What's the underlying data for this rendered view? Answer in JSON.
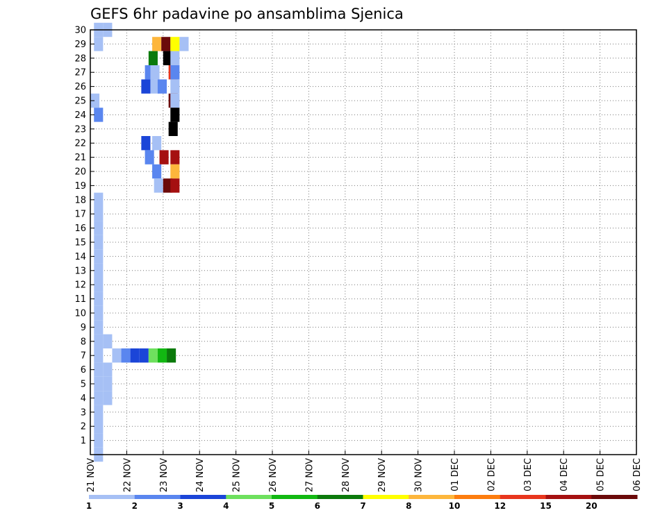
{
  "chart_data": {
    "type": "heatmap",
    "title": "GEFS 6hr padavine po ansamblima Sjenica",
    "xlabel": "",
    "ylabel": "",
    "x_tick_labels": [
      "21 NOV",
      "22 NOV",
      "23 NOV",
      "24 NOV",
      "25 NOV",
      "26 NOV",
      "27 NOV",
      "28 NOV",
      "29 NOV",
      "30 NOV",
      "01 DEC",
      "02 DEC",
      "03 DEC",
      "04 DEC",
      "05 DEC",
      "06 DEC"
    ],
    "x_range_days": [
      0,
      15
    ],
    "y_tick_labels": [
      "1",
      "2",
      "3",
      "4",
      "5",
      "6",
      "7",
      "8",
      "9",
      "10",
      "11",
      "12",
      "13",
      "14",
      "15",
      "16",
      "17",
      "18",
      "19",
      "20",
      "21",
      "22",
      "23",
      "24",
      "25",
      "26",
      "27",
      "28",
      "29",
      "30"
    ],
    "y_range_members": [
      0,
      30
    ],
    "grid": true,
    "legend": {
      "placement": "bottom",
      "labels": [
        "1",
        "2",
        "3",
        "4",
        "5",
        "6",
        "7",
        "8",
        "10",
        "12",
        "15",
        "20"
      ],
      "colors": [
        "#a6c0f5",
        "#5a86ef",
        "#1b45d8",
        "#6ee05e",
        "#12b812",
        "#0b7a0b",
        "#ffff00",
        "#fdb63c",
        "#fd7d0e",
        "#e8361d",
        "#a51010",
        "#6b0a0a"
      ]
    },
    "cells": [
      [
        0.1,
        30,
        0
      ],
      [
        0.35,
        30,
        0
      ],
      [
        0.1,
        29,
        0
      ],
      [
        1.7,
        29,
        7
      ],
      [
        1.95,
        29,
        11
      ],
      [
        2.2,
        29,
        6
      ],
      [
        2.45,
        29,
        0
      ],
      [
        1.6,
        28,
        5
      ],
      [
        2.0,
        28,
        12
      ],
      [
        2.2,
        28,
        0
      ],
      [
        1.5,
        27,
        1
      ],
      [
        1.65,
        27,
        0
      ],
      [
        2.15,
        27,
        9
      ],
      [
        2.2,
        27,
        1
      ],
      [
        1.4,
        26,
        2
      ],
      [
        1.65,
        26,
        0
      ],
      [
        1.85,
        26,
        1
      ],
      [
        2.2,
        26,
        0
      ],
      [
        0.0,
        25,
        0
      ],
      [
        2.15,
        25,
        11
      ],
      [
        2.2,
        25,
        0
      ],
      [
        0.1,
        24,
        1
      ],
      [
        2.2,
        24,
        12
      ],
      [
        2.15,
        23,
        12
      ],
      [
        1.4,
        22,
        2
      ],
      [
        1.7,
        22,
        0
      ],
      [
        1.5,
        21,
        1
      ],
      [
        1.9,
        21,
        10
      ],
      [
        2.2,
        21,
        10
      ],
      [
        1.7,
        20,
        1
      ],
      [
        2.2,
        20,
        7
      ],
      [
        1.75,
        19,
        0
      ],
      [
        2.0,
        19,
        11
      ],
      [
        2.2,
        19,
        10
      ],
      [
        0.1,
        18,
        0
      ],
      [
        0.1,
        17,
        0
      ],
      [
        0.1,
        16,
        0
      ],
      [
        0.1,
        15,
        0
      ],
      [
        0.1,
        14,
        0
      ],
      [
        0.1,
        13,
        0
      ],
      [
        0.1,
        12,
        0
      ],
      [
        0.1,
        11,
        0
      ],
      [
        0.1,
        10,
        0
      ],
      [
        0.1,
        9,
        0
      ],
      [
        0.1,
        8,
        0
      ],
      [
        0.35,
        8,
        0
      ],
      [
        0.1,
        7,
        0
      ],
      [
        0.6,
        7,
        0
      ],
      [
        0.85,
        7,
        1
      ],
      [
        1.1,
        7,
        2
      ],
      [
        1.35,
        7,
        2
      ],
      [
        1.6,
        7,
        3
      ],
      [
        1.85,
        7,
        4
      ],
      [
        2.1,
        7,
        5
      ],
      [
        0.1,
        6,
        0
      ],
      [
        0.35,
        6,
        0
      ],
      [
        0.1,
        5,
        0
      ],
      [
        0.35,
        5,
        0
      ],
      [
        0.1,
        4,
        0
      ],
      [
        0.35,
        4,
        0
      ],
      [
        0.1,
        3,
        0
      ],
      [
        0.1,
        2,
        0
      ],
      [
        0.1,
        1,
        0
      ],
      [
        0.1,
        0,
        0
      ]
    ],
    "cells_note": "Each cell: [x_day_offset_from_21_NOV, member_row (0 = below member 1, 30 = member 30), color_index into legend.colors]. Bins are 6-hourly (0.25 day)."
  }
}
